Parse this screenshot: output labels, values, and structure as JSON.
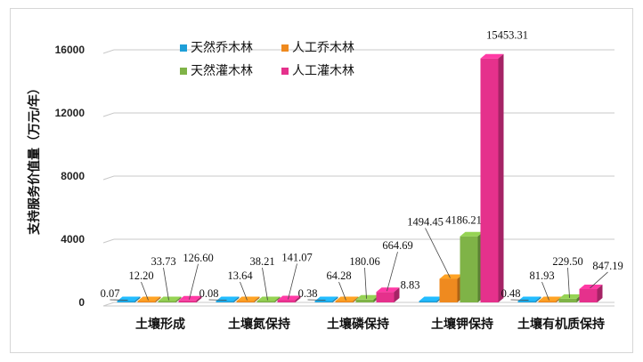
{
  "chart_data": {
    "type": "bar",
    "title": "",
    "xlabel": "",
    "ylabel": "支持服务价值量（万元/年）",
    "ylim": [
      0,
      16000
    ],
    "yticks": [
      0,
      4000,
      8000,
      12000,
      16000
    ],
    "grid": true,
    "legend_position": "top-left",
    "categories": [
      "土壤形成",
      "土壤氮保持",
      "土壤磷保持",
      "土壤钾保持",
      "土壤有机质保持"
    ],
    "series": [
      {
        "name": "天然乔木林",
        "color": "#1e9fd8",
        "values": [
          0.07,
          0.08,
          0.38,
          8.83,
          0.48
        ],
        "labels": [
          "0.07",
          "0.08",
          "0.38",
          "8.83",
          "0.48"
        ]
      },
      {
        "name": "人工乔木林",
        "color": "#ef8a1f",
        "values": [
          12.2,
          13.64,
          64.28,
          1494.45,
          81.93
        ],
        "labels": [
          "12.20",
          "13.64",
          "64.28",
          "1494.45",
          "81.93"
        ]
      },
      {
        "name": "天然灌木林",
        "color": "#7fb347",
        "values": [
          33.73,
          38.21,
          180.06,
          4186.21,
          229.5
        ],
        "labels": [
          "33.73",
          "38.21",
          "180.06",
          "4186.21",
          "229.50"
        ]
      },
      {
        "name": "人工灌木林",
        "color": "#e5318c",
        "values": [
          126.6,
          141.07,
          664.69,
          15453.31,
          847.19
        ],
        "labels": [
          "126.60",
          "141.07",
          "664.69",
          "15453.31",
          "847.19"
        ]
      }
    ]
  }
}
